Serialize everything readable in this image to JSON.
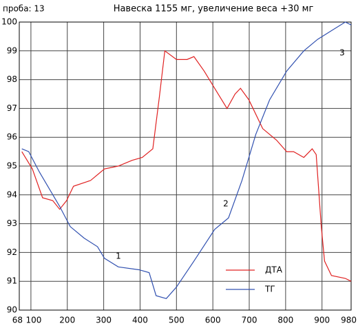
{
  "chart_data": {
    "type": "line",
    "label": "проба: 13",
    "title": "Навеска 1155 мг,  увеличение веса +30 мг",
    "annotations": [
      "1",
      "2",
      "3"
    ],
    "xlim": [
      68,
      980
    ],
    "xticks": [
      68,
      100,
      200,
      300,
      400,
      500,
      600,
      700,
      800,
      900,
      980
    ],
    "ylim": [
      90,
      100
    ],
    "yticks": [
      90,
      91,
      92,
      93,
      94,
      95,
      96,
      97,
      98,
      99,
      100
    ],
    "grid": true,
    "legend": "bottom-right",
    "series": [
      {
        "name": "ДТА",
        "color": "#e02020",
        "x": [
          75,
          104,
          132,
          160,
          179,
          198,
          217,
          264,
          302,
          340,
          378,
          406,
          435,
          453,
          468,
          500,
          529,
          548,
          576,
          605,
          639,
          661,
          676,
          699,
          737,
          775,
          803,
          822,
          850,
          873,
          884,
          898,
          907,
          926,
          964,
          980
        ],
        "values": [
          95.5,
          94.9,
          93.9,
          93.8,
          93.5,
          93.8,
          94.3,
          94.5,
          94.9,
          95.0,
          95.2,
          95.3,
          95.6,
          97.4,
          99.0,
          98.7,
          98.7,
          98.8,
          98.3,
          97.7,
          97.0,
          97.5,
          97.7,
          97.3,
          96.3,
          95.9,
          95.5,
          95.5,
          95.3,
          95.6,
          95.4,
          92.9,
          91.7,
          91.2,
          91.1,
          91.0
        ]
      },
      {
        "name": "ТГ",
        "color": "#3050b0",
        "x": [
          75,
          94,
          123,
          151,
          179,
          208,
          246,
          283,
          302,
          340,
          397,
          425,
          444,
          472,
          500,
          548,
          605,
          643,
          680,
          718,
          756,
          803,
          850,
          888,
          926,
          964,
          980
        ],
        "values": [
          95.6,
          95.5,
          94.8,
          94.2,
          93.6,
          92.9,
          92.5,
          92.2,
          91.8,
          91.5,
          91.4,
          91.3,
          90.5,
          90.4,
          90.8,
          91.7,
          92.8,
          93.2,
          94.5,
          96.1,
          97.3,
          98.3,
          99.0,
          99.4,
          99.7,
          100.0,
          99.9
        ]
      }
    ]
  }
}
